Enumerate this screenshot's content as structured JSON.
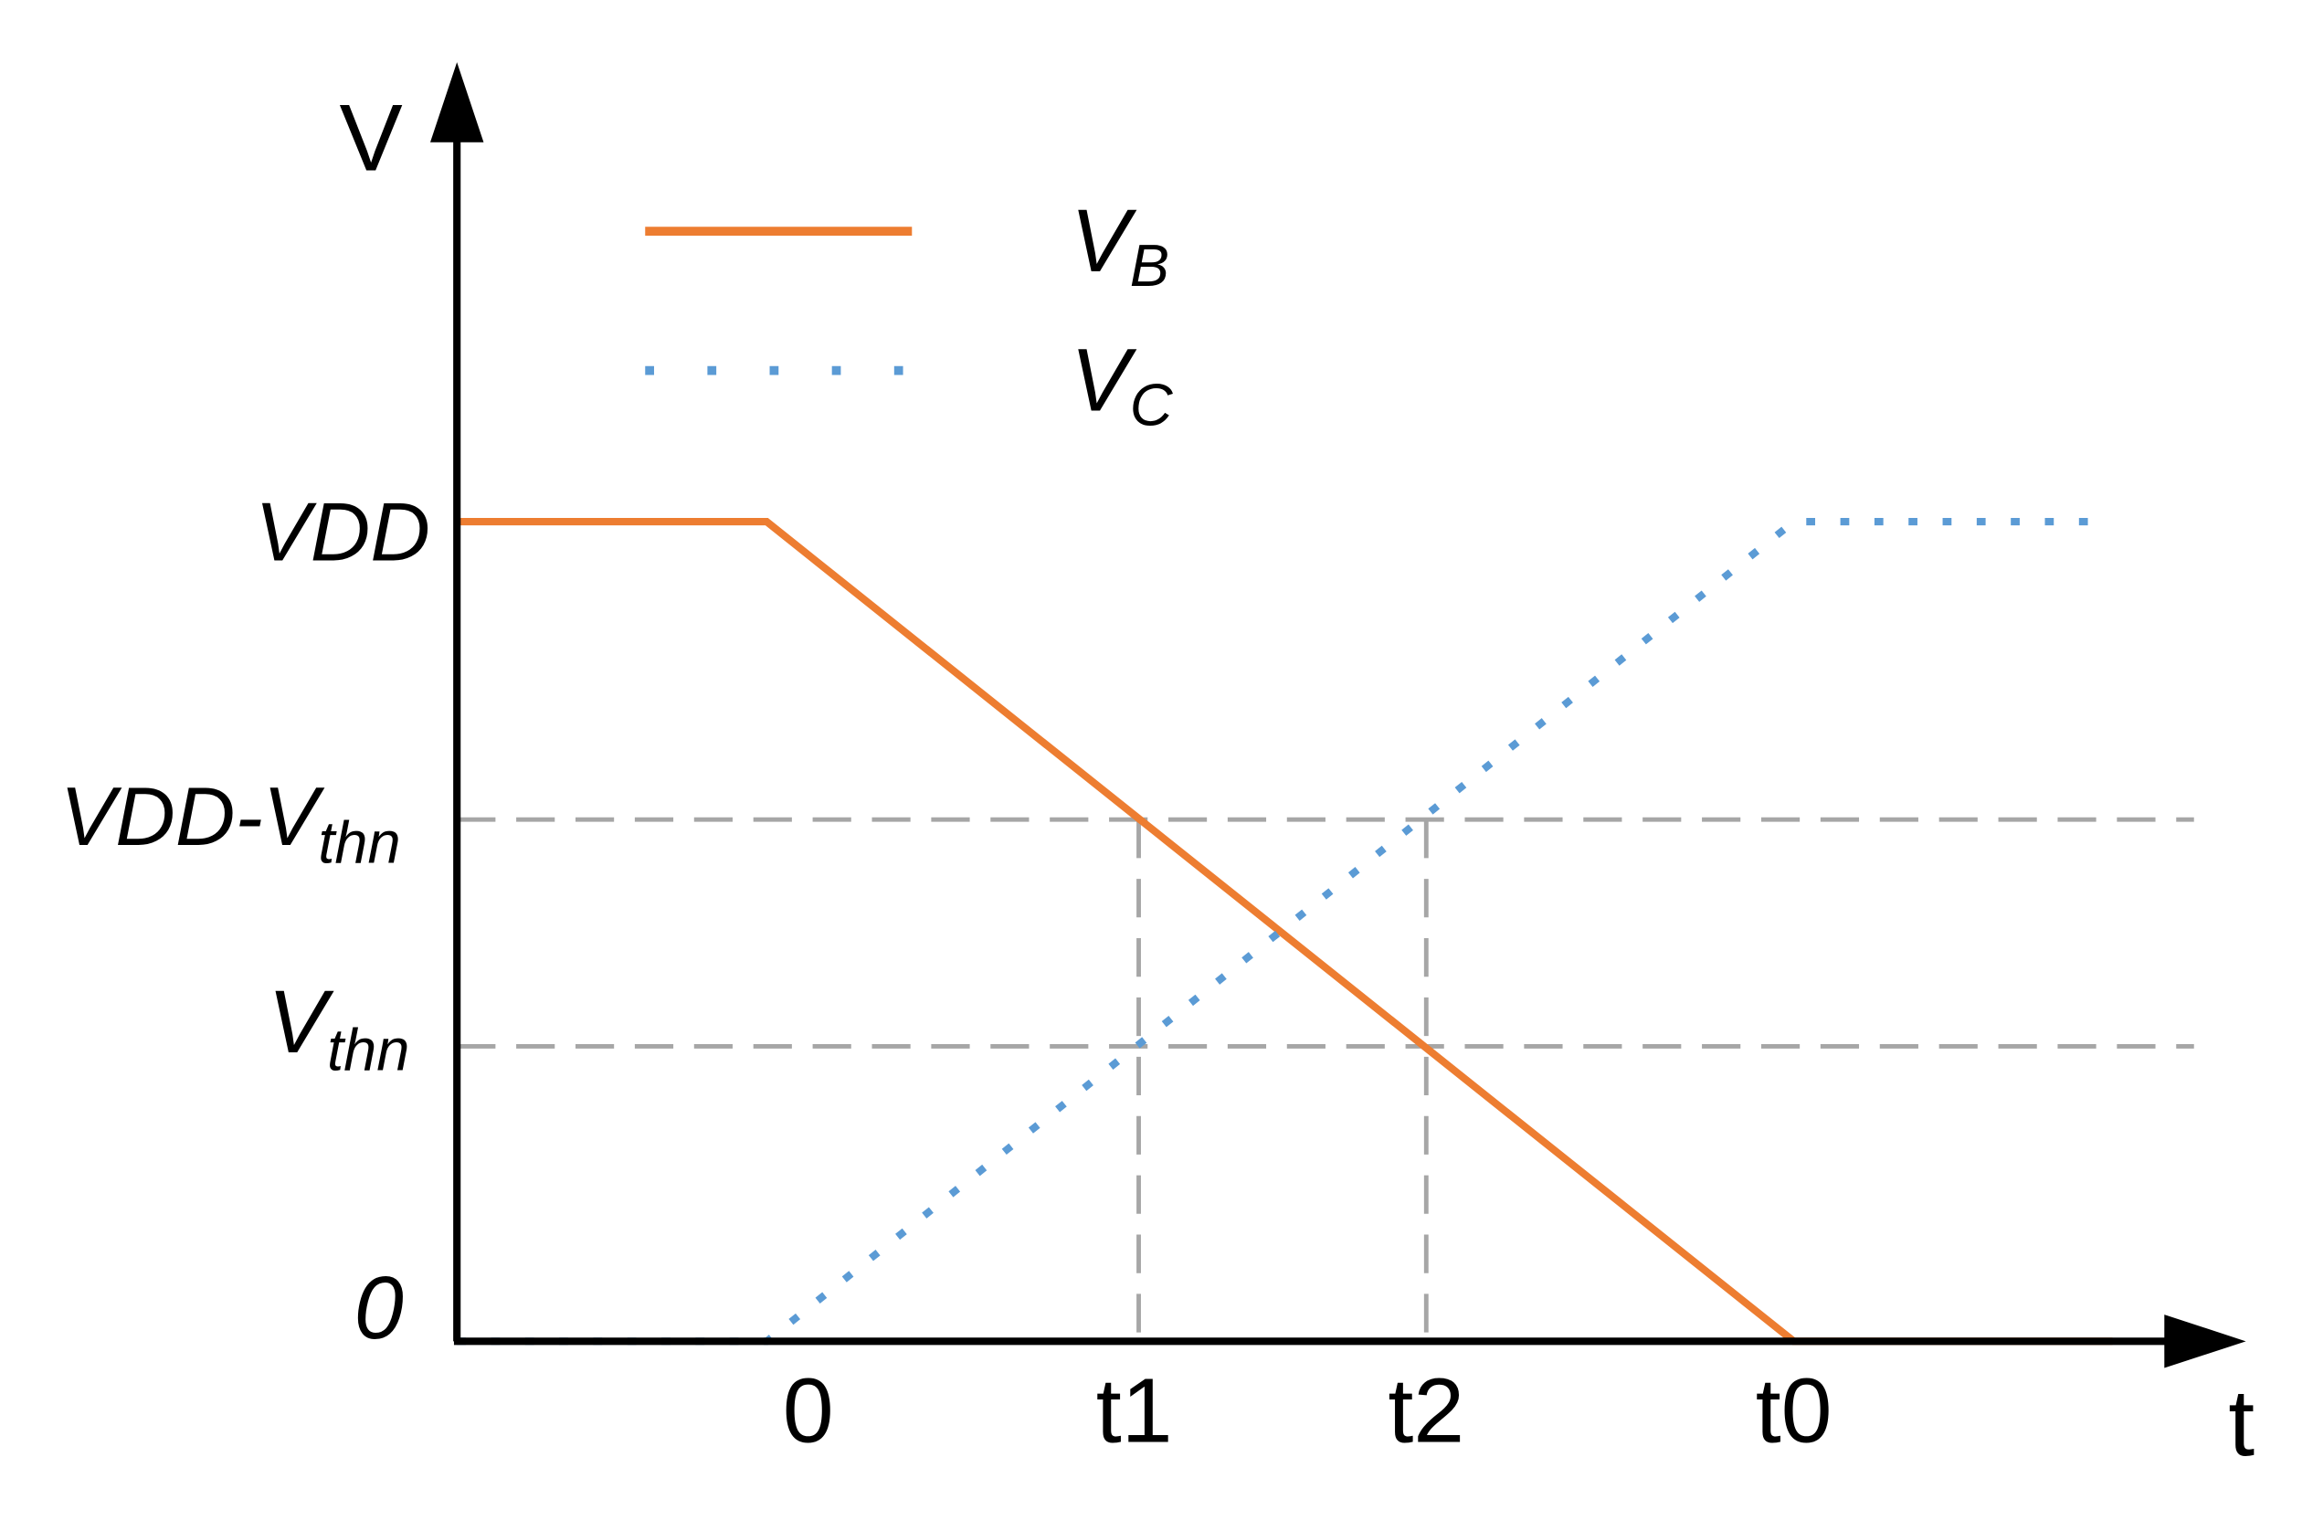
{
  "axes": {
    "y_label": "V",
    "x_label": "t"
  },
  "y_labels": [
    {
      "main": "VDD"
    },
    {
      "main": "VDD-V",
      "sub": "thn"
    },
    {
      "main": "V",
      "sub": "thn"
    },
    {
      "main": "0"
    }
  ],
  "x_labels": [
    "0",
    "t1",
    "t2",
    "t0"
  ],
  "legend": [
    {
      "main": "V",
      "sub": "B"
    },
    {
      "main": "V",
      "sub": "C"
    }
  ]
}
